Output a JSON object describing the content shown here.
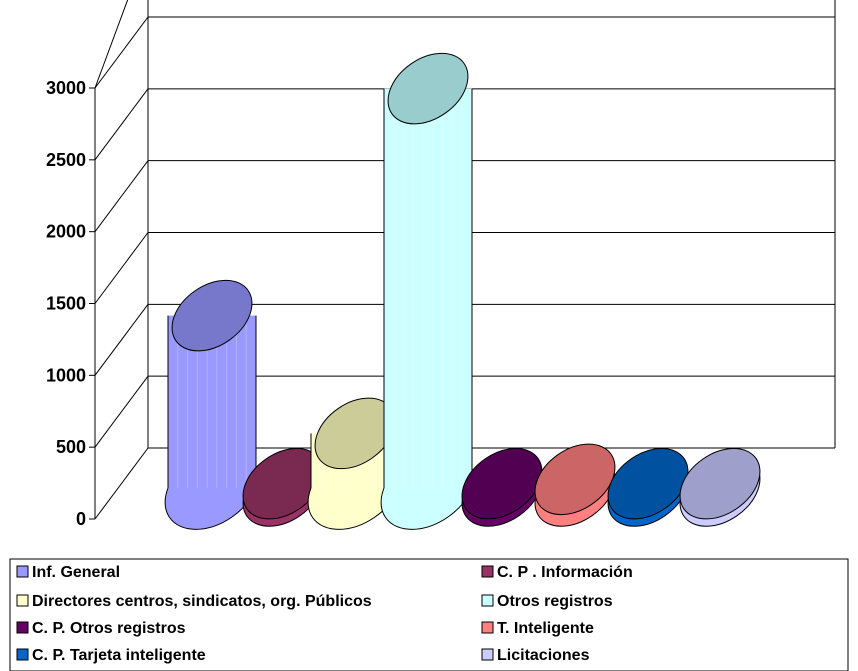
{
  "chart_data": {
    "type": "bar",
    "style": "3d-cylinder",
    "categories": [
      "Inf. General",
      "C. P . Información",
      "Directores centros, sindicatos, org. Públicos",
      "Otros registros",
      "C. P. Otros registros",
      "T. Inteligente",
      "C. P. Tarjeta inteligente",
      "Licitaciones"
    ],
    "values": [
      1200,
      30,
      380,
      2780,
      30,
      60,
      30,
      30
    ],
    "colors": [
      "#9999ff",
      "#993366",
      "#ffffcc",
      "#ccffff",
      "#660066",
      "#ff8080",
      "#0066cc",
      "#ccccff"
    ],
    "top_colors": [
      "#7777cc",
      "#7a2950",
      "#cccc99",
      "#99cccc",
      "#520052",
      "#cc6666",
      "#00519f",
      "#9f9fcc"
    ],
    "ylim": [
      0,
      3000
    ],
    "yticks": [
      "0",
      "500",
      "1000",
      "1500",
      "2000",
      "2500",
      "3000"
    ],
    "title": "",
    "xlabel": "",
    "ylabel": "",
    "grid": true,
    "legend": "bottom"
  }
}
